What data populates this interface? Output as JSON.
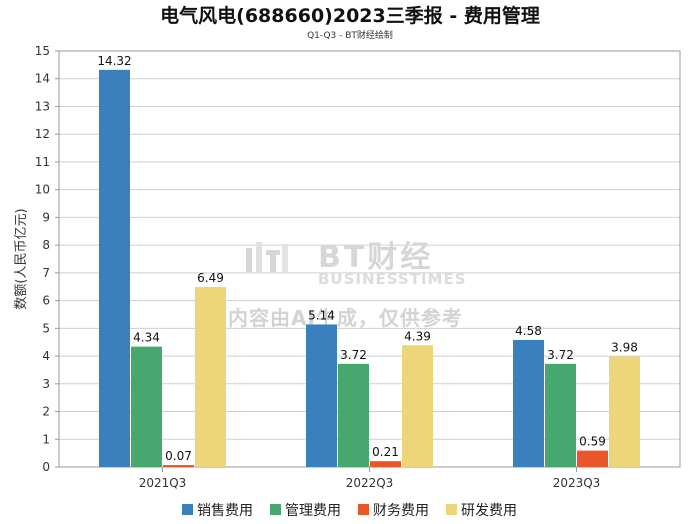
{
  "chart_data": {
    "type": "bar",
    "title": "电气风电(688660)2023三季报 - 费用管理",
    "subtitle": "Q1-Q3 - BT财经绘制",
    "xlabel": "",
    "ylabel": "数额(人民币亿元)",
    "ylim": [
      0,
      15
    ],
    "yticks": [
      0,
      1,
      2,
      3,
      4,
      5,
      6,
      7,
      8,
      9,
      10,
      11,
      12,
      13,
      14,
      15
    ],
    "categories": [
      "2021Q3",
      "2022Q3",
      "2023Q3"
    ],
    "series": [
      {
        "name": "销售费用",
        "color": "#3a80bd",
        "values": [
          14.32,
          5.14,
          4.58
        ]
      },
      {
        "name": "管理费用",
        "color": "#46a86f",
        "values": [
          4.34,
          3.72,
          3.72
        ]
      },
      {
        "name": "财务费用",
        "color": "#e8562a",
        "values": [
          0.07,
          0.21,
          0.59
        ]
      },
      {
        "name": "研发费用",
        "color": "#ecd679",
        "values": [
          6.49,
          4.39,
          3.98
        ]
      }
    ],
    "grid": true,
    "legend_position": "bottom"
  },
  "watermark": {
    "brand": "BT财经",
    "brand_sub": "BUSINESSTIMES",
    "note": "内容由AI生成，仅供参考"
  }
}
